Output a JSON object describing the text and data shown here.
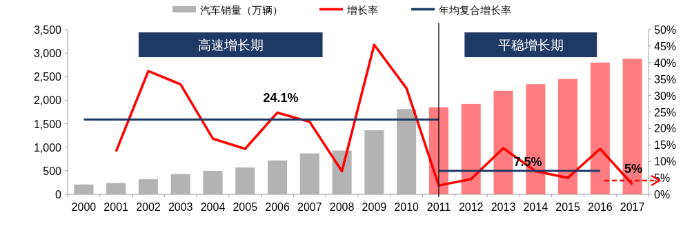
{
  "chart_data": {
    "type": "bar",
    "categories": [
      "2000",
      "2001",
      "2002",
      "2003",
      "2004",
      "2005",
      "2006",
      "2007",
      "2008",
      "2009",
      "2010",
      "2011",
      "2012",
      "2013",
      "2014",
      "2015",
      "2016",
      "2017"
    ],
    "series": [
      {
        "name": "汽车销量（万辆）",
        "color": "#b3b3b3",
        "colors": [
          "#b3b3b3",
          "#b3b3b3",
          "#b3b3b3",
          "#b3b3b3",
          "#b3b3b3",
          "#b3b3b3",
          "#b3b3b3",
          "#b3b3b3",
          "#b3b3b3",
          "#b3b3b3",
          "#b3b3b3",
          "#ff7c80",
          "#ff7c80",
          "#ff7c80",
          "#ff7c80",
          "#ff7c80",
          "#ff7c80",
          "#ff7c80"
        ],
        "values": [
          210,
          240,
          320,
          430,
          500,
          570,
          720,
          870,
          930,
          1360,
          1810,
          1850,
          1920,
          2200,
          2340,
          2450,
          2800,
          2880
        ]
      },
      {
        "name": "增长率",
        "type": "line",
        "axis": "y2",
        "color": "#ff0000",
        "values": [
          null,
          13.0,
          37.4,
          33.4,
          16.9,
          13.8,
          24.8,
          22.0,
          7.0,
          45.4,
          32.2,
          2.7,
          4.6,
          14.0,
          7.0,
          5.0,
          13.8,
          3.0
        ]
      },
      {
        "name": "年均复合增长率",
        "type": "line",
        "axis": "y2",
        "color": "#1f3864",
        "values": [
          22.7,
          22.7,
          22.7,
          22.7,
          22.7,
          22.7,
          22.7,
          22.7,
          22.7,
          22.7,
          22.7,
          22.7,
          null,
          null,
          null,
          null,
          null,
          null
        ]
      },
      {
        "type": "line",
        "axis": "y2",
        "color": "#1f3864",
        "values": [
          null,
          null,
          null,
          null,
          null,
          null,
          null,
          null,
          null,
          null,
          null,
          7.1,
          7.1,
          7.1,
          7.1,
          7.1,
          7.1,
          null
        ]
      }
    ],
    "ylim": [
      0,
      3500
    ],
    "yticks": [
      {
        "value": 0,
        "label": "0"
      },
      {
        "value": 500,
        "label": "500"
      },
      {
        "value": 1000,
        "label": "1,000"
      },
      {
        "value": 1500,
        "label": "1,500"
      },
      {
        "value": 2000,
        "label": "2,000"
      },
      {
        "value": 2500,
        "label": "2,500"
      },
      {
        "value": 3000,
        "label": "3,000"
      },
      {
        "value": 3500,
        "label": "3,500"
      }
    ],
    "y2lim": [
      0,
      50
    ],
    "y2ticks": [
      {
        "value": 0,
        "label": "0%"
      },
      {
        "value": 5,
        "label": "5%"
      },
      {
        "value": 10,
        "label": "10%"
      },
      {
        "value": 15,
        "label": "15%"
      },
      {
        "value": 20,
        "label": "20%"
      },
      {
        "value": 25,
        "label": "25%"
      },
      {
        "value": 30,
        "label": "30%"
      },
      {
        "value": 35,
        "label": "35%"
      },
      {
        "value": 40,
        "label": "40%"
      },
      {
        "value": 45,
        "label": "45%"
      },
      {
        "value": 50,
        "label": "50%"
      }
    ],
    "ref_lines": [
      {
        "axis": "x",
        "value": "2011",
        "color": "#000000"
      }
    ],
    "annotations": [
      "高速增长期",
      "平稳增长期",
      "24.1%",
      "7.5%",
      "5%"
    ],
    "legend": "top",
    "grid": false
  }
}
